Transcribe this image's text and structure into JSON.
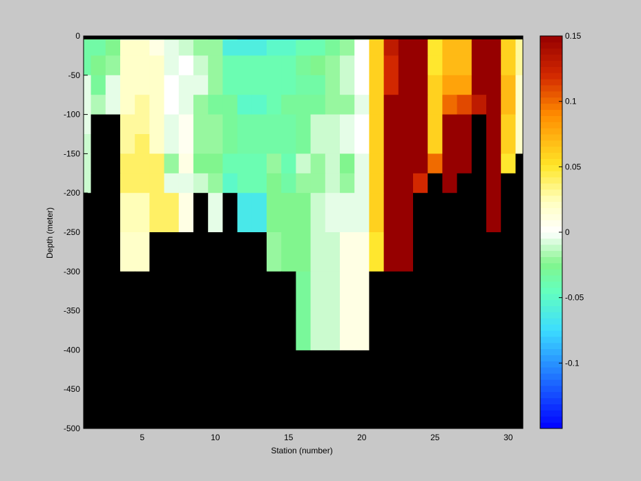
{
  "chart_data": {
    "type": "heatmap",
    "xlabel": "Station (number)",
    "ylabel": "Depth (meter)",
    "xlim": [
      1,
      31
    ],
    "ylim": [
      -500,
      0
    ],
    "x_ticks": [
      5,
      10,
      15,
      20,
      25,
      30
    ],
    "y_ticks": [
      0,
      -50,
      -100,
      -150,
      -200,
      -250,
      -300,
      -350,
      -400,
      -450,
      -500
    ],
    "colorbar": {
      "range": [
        -0.15,
        0.15
      ],
      "ticks": [
        0.15,
        0.1,
        0.05,
        0,
        -0.05,
        -0.1
      ],
      "tick_labels": [
        "0.15",
        "0.1",
        "0.05",
        "0",
        "-0.05",
        "-0.1"
      ]
    },
    "depths": [
      0,
      -12.5,
      -37.5,
      -62.5,
      -87.5,
      -112.5,
      -137.5,
      -162.5,
      -187.5,
      -225,
      -275,
      -325,
      -375
    ],
    "stations": [
      1,
      2,
      3,
      4,
      5,
      6,
      7,
      8,
      9,
      10,
      11,
      12,
      13,
      14,
      15,
      16,
      17,
      18,
      19,
      20,
      21,
      22,
      23,
      24,
      25,
      26,
      27,
      28,
      29,
      30,
      31
    ],
    "values": [
      [
        -0.025,
        -0.03,
        -0.03,
        -0.01,
        -0.01,
        -0.015,
        -0.02,
        -0.02,
        -0.02,
        -0.03,
        -0.05,
        -0.08,
        -0.08,
        -0.08,
        -0.08,
        -0.08,
        -0.04,
        -0.035,
        -0.03,
        -0.01,
        0.05,
        0.13,
        0.15,
        0.15,
        0.06,
        0.08,
        0.08,
        0.15,
        0.15,
        0.06,
        0.03
      ],
      [
        -0.035,
        -0.035,
        -0.025,
        0.02,
        0.02,
        0.01,
        -0.005,
        -0.01,
        -0.02,
        -0.02,
        -0.06,
        -0.06,
        -0.06,
        -0.05,
        -0.05,
        -0.04,
        -0.04,
        -0.03,
        -0.02,
        0.0,
        0.06,
        0.13,
        0.15,
        0.15,
        0.05,
        0.07,
        0.07,
        0.15,
        0.15,
        0.06,
        0.03
      ],
      [
        -0.035,
        -0.025,
        -0.02,
        0.02,
        0.02,
        0.02,
        -0.005,
        0.0,
        -0.01,
        -0.02,
        -0.04,
        -0.04,
        -0.04,
        -0.04,
        -0.04,
        -0.03,
        -0.025,
        -0.02,
        -0.01,
        0.0,
        0.06,
        0.12,
        0.15,
        0.15,
        0.05,
        0.07,
        0.07,
        0.15,
        0.15,
        0.06,
        0.03
      ],
      [
        -0.005,
        -0.03,
        -0.005,
        0.02,
        0.02,
        0.02,
        0.0,
        -0.005,
        -0.005,
        -0.02,
        -0.04,
        -0.04,
        -0.04,
        -0.04,
        -0.04,
        -0.035,
        -0.035,
        -0.02,
        -0.01,
        0.0,
        0.06,
        0.12,
        0.15,
        0.15,
        0.06,
        0.08,
        0.08,
        0.15,
        0.15,
        0.07,
        0.02
      ],
      [
        -0.005,
        -0.015,
        -0.005,
        0.02,
        0.03,
        0.02,
        0.0,
        -0.005,
        -0.02,
        -0.03,
        -0.03,
        -0.05,
        -0.05,
        -0.04,
        -0.03,
        -0.03,
        -0.03,
        -0.02,
        -0.02,
        -0.005,
        0.06,
        0.15,
        0.15,
        0.15,
        0.06,
        0.1,
        0.11,
        0.13,
        0.15,
        0.07,
        0.02
      ],
      [
        -0.005,
        null,
        null,
        0.03,
        0.03,
        0.02,
        -0.005,
        0.005,
        -0.02,
        -0.02,
        -0.03,
        -0.035,
        -0.035,
        -0.035,
        -0.035,
        -0.03,
        -0.01,
        -0.01,
        -0.005,
        0.0,
        0.06,
        0.15,
        0.15,
        0.15,
        0.06,
        0.15,
        0.15,
        null,
        0.15,
        0.06,
        0.02
      ],
      [
        -0.01,
        null,
        null,
        0.03,
        0.04,
        0.02,
        -0.005,
        0.005,
        -0.02,
        -0.02,
        -0.03,
        -0.035,
        -0.035,
        -0.035,
        -0.035,
        -0.03,
        -0.01,
        -0.01,
        -0.005,
        0.0,
        0.06,
        0.15,
        0.15,
        0.15,
        0.06,
        0.15,
        0.15,
        null,
        0.15,
        0.06,
        0.02
      ],
      [
        -0.01,
        null,
        null,
        0.04,
        0.04,
        0.04,
        -0.02,
        0.01,
        -0.025,
        -0.025,
        -0.04,
        -0.04,
        -0.04,
        -0.02,
        -0.04,
        -0.01,
        -0.02,
        -0.01,
        -0.025,
        -0.005,
        0.06,
        0.15,
        0.15,
        0.15,
        0.1,
        0.15,
        0.15,
        null,
        0.15,
        0.05,
        null
      ],
      [
        -0.01,
        null,
        null,
        0.04,
        0.04,
        0.04,
        -0.005,
        -0.005,
        -0.01,
        -0.02,
        -0.05,
        -0.04,
        -0.04,
        -0.025,
        -0.035,
        -0.02,
        -0.02,
        -0.01,
        -0.02,
        -0.005,
        0.06,
        0.15,
        0.15,
        0.12,
        null,
        0.15,
        null,
        null,
        0.15,
        null,
        null
      ],
      [
        null,
        null,
        null,
        0.025,
        0.025,
        0.04,
        0.04,
        0.01,
        null,
        -0.005,
        null,
        -0.065,
        -0.065,
        -0.025,
        -0.025,
        -0.025,
        -0.01,
        -0.005,
        -0.005,
        -0.005,
        0.06,
        0.15,
        0.15,
        null,
        null,
        null,
        null,
        null,
        0.15,
        null,
        null
      ],
      [
        null,
        null,
        null,
        0.02,
        0.02,
        null,
        null,
        null,
        null,
        null,
        null,
        null,
        null,
        -0.02,
        -0.025,
        -0.025,
        -0.01,
        -0.01,
        0.01,
        0.01,
        0.05,
        0.15,
        0.15,
        null,
        null,
        null,
        null,
        null,
        null,
        null,
        null
      ],
      [
        null,
        null,
        null,
        null,
        null,
        null,
        null,
        null,
        null,
        null,
        null,
        null,
        null,
        null,
        null,
        -0.03,
        -0.01,
        -0.01,
        0.01,
        0.01,
        null,
        null,
        null,
        null,
        null,
        null,
        null,
        null,
        null,
        null,
        null
      ],
      [
        null,
        null,
        null,
        null,
        null,
        null,
        null,
        null,
        null,
        null,
        null,
        null,
        null,
        null,
        null,
        -0.03,
        -0.01,
        -0.01,
        0.01,
        0.01,
        null,
        null,
        null,
        null,
        null,
        null,
        null,
        null,
        null,
        null,
        null
      ]
    ],
    "row_bounds": [
      [
        0,
        -5
      ],
      [
        -5,
        -25
      ],
      [
        -25,
        -50
      ],
      [
        -50,
        -75
      ],
      [
        -75,
        -100
      ],
      [
        -100,
        -125
      ],
      [
        -125,
        -150
      ],
      [
        -150,
        -175
      ],
      [
        -175,
        -200
      ],
      [
        -200,
        -250
      ],
      [
        -250,
        -300
      ],
      [
        -300,
        -350
      ],
      [
        -350,
        -400
      ]
    ],
    "colors": {
      "background": "#c8c8c8",
      "missing": "#000000",
      "top_band": "#000000"
    }
  }
}
